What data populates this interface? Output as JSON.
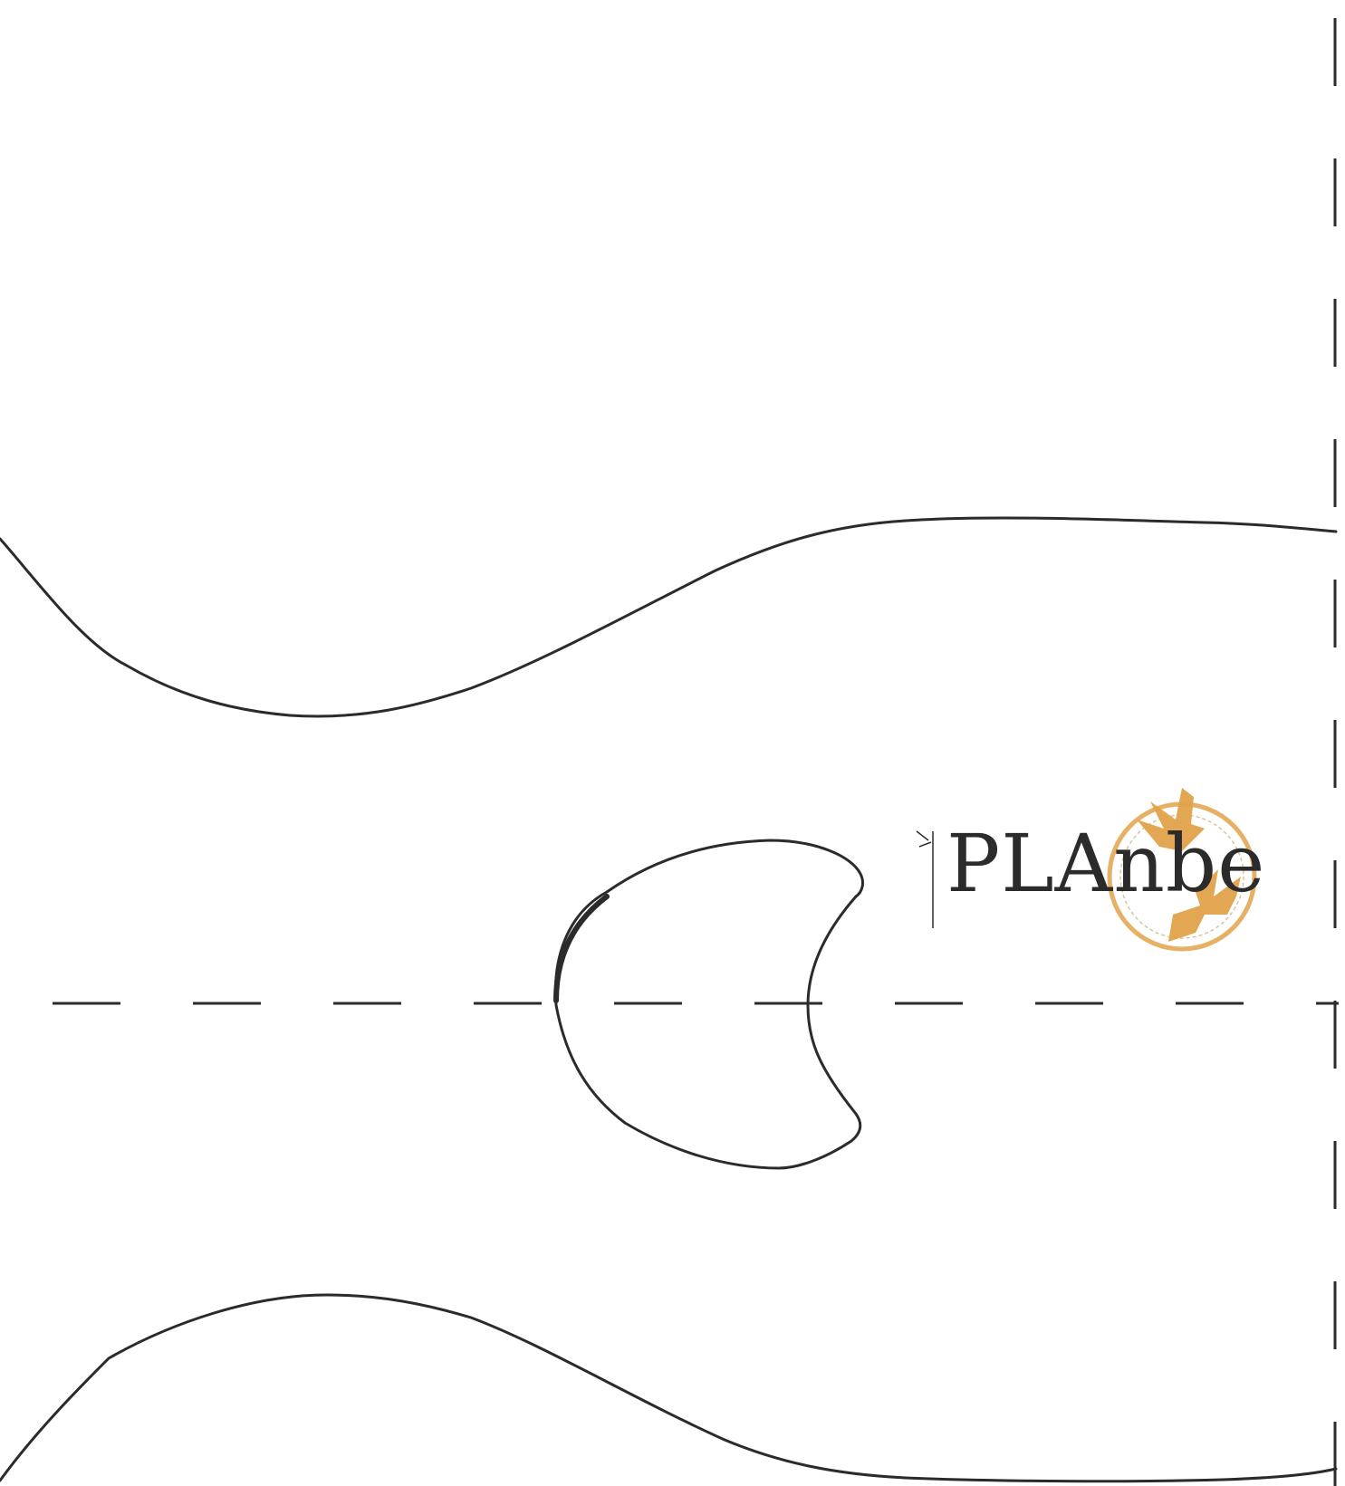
{
  "logo": {
    "wordmark": "PLAnbe",
    "accent_color": "#e2a24a",
    "ink_color": "#2b2b2b"
  },
  "pattern": {
    "background_color": "#ffffff",
    "line_color": "#2b2b2b"
  }
}
